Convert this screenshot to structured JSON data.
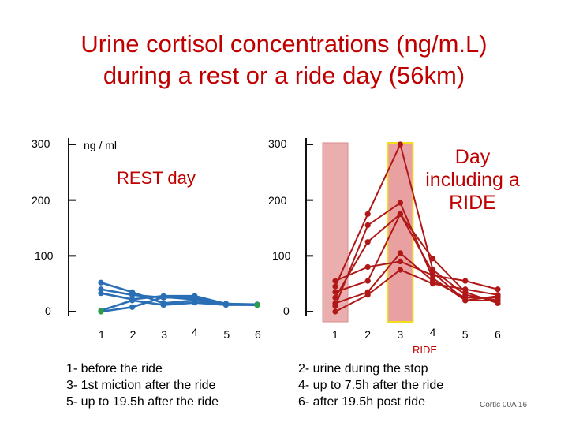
{
  "title": {
    "line1": "Urine cortisol concentrations (ng/m.L)",
    "line2": "during a rest or a ride day (56km)"
  },
  "labels": {
    "unit": "ng / ml",
    "rest_title": "REST day",
    "ride_title_1": "Day",
    "ride_title_2": "including a",
    "ride_title_3": "RIDE",
    "ride_axis_label": "RIDE",
    "credit": "Cortic 00A 16"
  },
  "legend_left": [
    "1- before the ride",
    "3- 1st miction after the ride",
    "5- up to 19.5h after the ride"
  ],
  "legend_right": [
    "2- urine  during the stop",
    "4- up to 7.5h after the ride",
    "6- after 19.5h post ride"
  ],
  "colors": {
    "title": "#c00000",
    "rest_series": "#2a6fb5",
    "ride_series": "#b01818",
    "point_1_rest": "#2e9d4a",
    "band_ride": "#e8a0a0",
    "highlight_border": "#f2de1e"
  },
  "chart_data": [
    {
      "type": "line",
      "title": "REST day",
      "ylabel": "ng / ml",
      "ylim": [
        0,
        300
      ],
      "yticks": [
        0,
        100,
        200,
        300
      ],
      "xticks": [
        1,
        2,
        3,
        4,
        5,
        6
      ],
      "series": [
        {
          "x": [
            1,
            2,
            3,
            4,
            5,
            6
          ],
          "values": [
            52,
            35,
            15,
            20,
            13,
            12
          ]
        },
        {
          "x": [
            1,
            2,
            3,
            4,
            5,
            6
          ],
          "values": [
            40,
            30,
            25,
            26,
            14,
            12
          ]
        },
        {
          "x": [
            1,
            2,
            3,
            4,
            5,
            6
          ],
          "values": [
            33,
            22,
            28,
            28,
            14,
            13
          ]
        },
        {
          "x": [
            1,
            2,
            3,
            4,
            5,
            6
          ],
          "values": [
            0,
            8,
            26,
            22,
            14,
            12
          ]
        },
        {
          "x": [
            1,
            2,
            3,
            4,
            5,
            6
          ],
          "values": [
            2,
            20,
            12,
            16,
            12,
            12
          ]
        }
      ]
    },
    {
      "type": "line",
      "title": "Day including a RIDE",
      "ylim": [
        0,
        300
      ],
      "yticks": [
        0,
        100,
        200,
        300
      ],
      "xticks": [
        1,
        2,
        3,
        4,
        5,
        6
      ],
      "xticks_label": "RIDE",
      "highlighted_x": [
        1,
        3
      ],
      "series": [
        {
          "x": [
            1,
            2,
            3,
            4,
            5,
            6
          ],
          "values": [
            45,
            175,
            300,
            75,
            30,
            20
          ]
        },
        {
          "x": [
            1,
            2,
            3,
            4,
            5,
            6
          ],
          "values": [
            25,
            125,
            175,
            95,
            35,
            15
          ]
        },
        {
          "x": [
            1,
            2,
            3,
            4,
            5,
            6
          ],
          "values": [
            10,
            155,
            195,
            60,
            20,
            28
          ]
        },
        {
          "x": [
            1,
            2,
            3,
            4,
            5,
            6
          ],
          "values": [
            35,
            55,
            175,
            70,
            20,
            20
          ]
        },
        {
          "x": [
            1,
            2,
            3,
            4,
            5,
            6
          ],
          "values": [
            15,
            35,
            105,
            55,
            25,
            25
          ]
        },
        {
          "x": [
            1,
            2,
            3,
            4,
            5,
            6
          ],
          "values": [
            0,
            30,
            75,
            50,
            40,
            30
          ]
        },
        {
          "x": [
            1,
            2,
            3,
            4,
            5,
            6
          ],
          "values": [
            55,
            80,
            90,
            65,
            55,
            40
          ]
        }
      ]
    }
  ]
}
